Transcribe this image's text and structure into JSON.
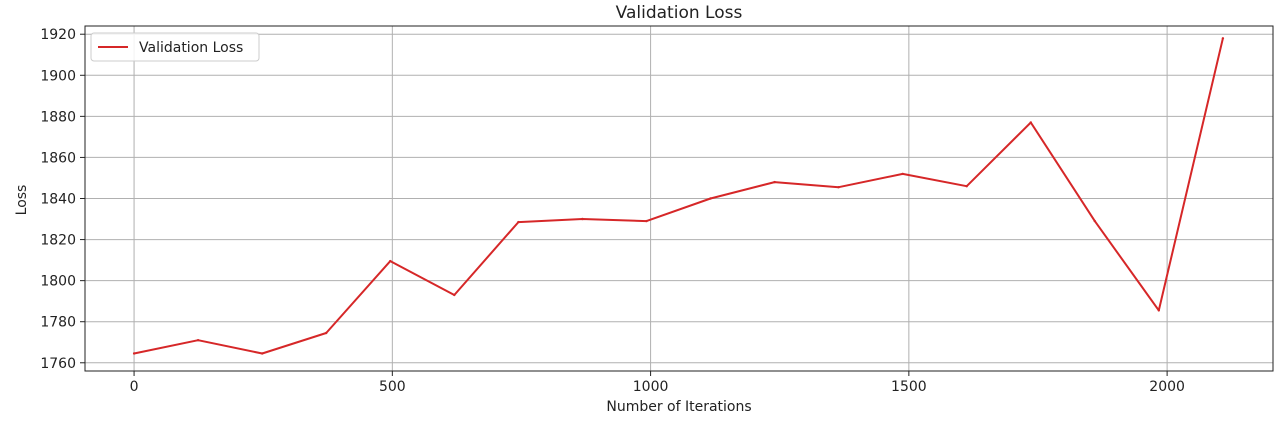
{
  "chart_data": {
    "type": "line",
    "title": "Validation Loss",
    "xlabel": "Number of Iterations",
    "ylabel": "Loss",
    "xlim": [
      -95,
      2205
    ],
    "ylim": [
      1756,
      1924
    ],
    "xticks": [
      0,
      500,
      1000,
      1500,
      2000
    ],
    "yticks": [
      1760,
      1780,
      1800,
      1820,
      1840,
      1860,
      1880,
      1900,
      1920
    ],
    "grid": true,
    "legend_position": "top-left",
    "series": [
      {
        "name": "Validation Loss",
        "color": "#d62728",
        "x": [
          0,
          124,
          248,
          372,
          496,
          620,
          744,
          868,
          992,
          1116,
          1240,
          1364,
          1488,
          1612,
          1736,
          1860,
          1984,
          2108
        ],
        "y": [
          1764.5,
          1771,
          1764.5,
          1774.5,
          1809.5,
          1793,
          1828.5,
          1830,
          1829,
          1840,
          1848,
          1845.5,
          1852,
          1846,
          1877,
          1829,
          1785.5,
          1918
        ]
      }
    ]
  }
}
